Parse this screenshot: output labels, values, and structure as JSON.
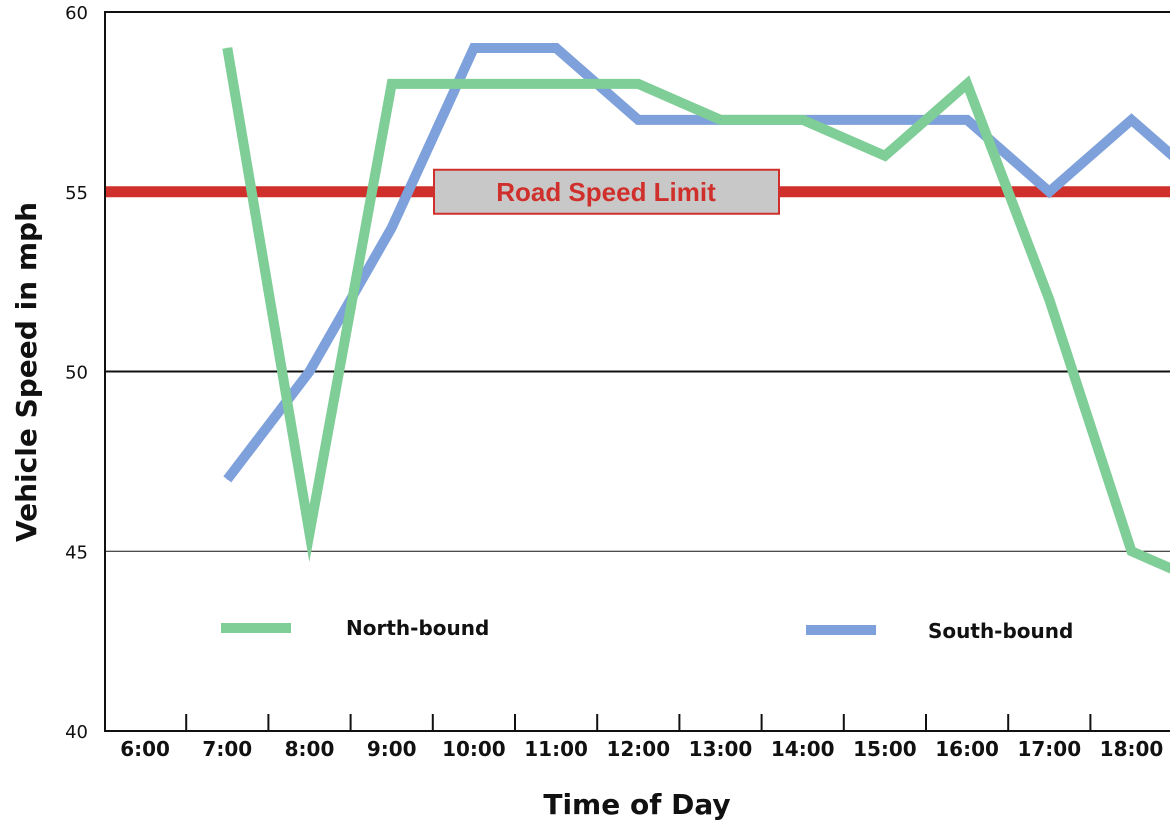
{
  "chart_data": {
    "type": "line",
    "title": "",
    "xlabel": "Time of Day",
    "ylabel": "Vehicle Speed  in mph",
    "ylim": [
      40,
      60
    ],
    "yticks": [
      "40",
      "45",
      "50",
      "55",
      "60"
    ],
    "categories": [
      "6:00",
      "7:00",
      "8:00",
      "9:00",
      "10:00",
      "11:00",
      "12:00",
      "13:00",
      "14:00",
      "15:00",
      "16:00",
      "17:00",
      "18:00"
    ],
    "series": [
      {
        "name": "North-bound",
        "color": "#7fcd97",
        "x": [
          "6:30",
          "7:30",
          "8:30",
          "9:30",
          "10:30",
          "11:30",
          "12:30",
          "13:30",
          "14:30",
          "15:30",
          "16:30",
          "17:30",
          "18:30"
        ],
        "values": [
          59,
          45.5,
          58,
          58,
          58,
          58,
          57,
          57,
          56,
          58,
          52,
          45,
          44
        ]
      },
      {
        "name": "South-bound",
        "color": "#7ea1dc",
        "x": [
          "6:30",
          "7:30",
          "8:30",
          "9:30",
          "10:30",
          "11:30",
          "12:30",
          "13:30",
          "14:30",
          "15:30",
          "16:30",
          "17:30",
          "18:30"
        ],
        "values": [
          47,
          50,
          54,
          59,
          59,
          57,
          57,
          57,
          57,
          57,
          55,
          57,
          55
        ]
      }
    ],
    "reference_line": {
      "label": "Road Speed Limit",
      "value": 55,
      "color": "#d0302c",
      "label_bg": "#c8c8c8"
    },
    "gridlines": [
      45,
      50
    ],
    "legend_position": "bottom"
  }
}
